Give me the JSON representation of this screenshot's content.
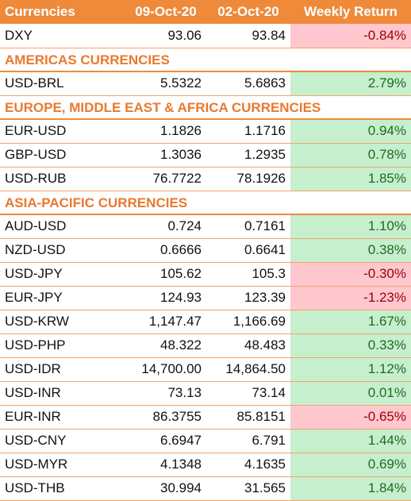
{
  "header": {
    "col_name": "Currencies",
    "col_current": "09-Oct-20",
    "col_previous": "02-Oct-20",
    "col_return": "Weekly Return"
  },
  "colors": {
    "header_bg": "#ef8a3a",
    "section_text": "#e8792f",
    "positive_bg": "#c6efce",
    "negative_bg": "#ffc7ce"
  },
  "rows": [
    {
      "type": "data",
      "name": "DXY",
      "current": "93.06",
      "previous": "93.84",
      "ret": "-0.84%",
      "sign": "neg"
    },
    {
      "type": "section",
      "title": "AMERICAS CURRENCIES"
    },
    {
      "type": "data",
      "name": "USD-BRL",
      "current": "5.5322",
      "previous": "5.6863",
      "ret": "2.79%",
      "sign": "pos"
    },
    {
      "type": "section",
      "title": "EUROPE, MIDDLE EAST & AFRICA CURRENCIES"
    },
    {
      "type": "data",
      "name": "EUR-USD",
      "current": "1.1826",
      "previous": "1.1716",
      "ret": "0.94%",
      "sign": "pos"
    },
    {
      "type": "data",
      "name": "GBP-USD",
      "current": "1.3036",
      "previous": "1.2935",
      "ret": "0.78%",
      "sign": "pos"
    },
    {
      "type": "data",
      "name": "USD-RUB",
      "current": "76.7722",
      "previous": "78.1926",
      "ret": "1.85%",
      "sign": "pos"
    },
    {
      "type": "section",
      "title": "ASIA-PACIFIC CURRENCIES"
    },
    {
      "type": "data",
      "name": "AUD-USD",
      "current": "0.724",
      "previous": "0.7161",
      "ret": "1.10%",
      "sign": "pos"
    },
    {
      "type": "data",
      "name": "NZD-USD",
      "current": "0.6666",
      "previous": "0.6641",
      "ret": "0.38%",
      "sign": "pos"
    },
    {
      "type": "data",
      "name": "USD-JPY",
      "current": "105.62",
      "previous": "105.3",
      "ret": "-0.30%",
      "sign": "neg"
    },
    {
      "type": "data",
      "name": "EUR-JPY",
      "current": "124.93",
      "previous": "123.39",
      "ret": "-1.23%",
      "sign": "neg"
    },
    {
      "type": "data",
      "name": "USD-KRW",
      "current": "1,147.47",
      "previous": "1,166.69",
      "ret": "1.67%",
      "sign": "pos"
    },
    {
      "type": "data",
      "name": "USD-PHP",
      "current": "48.322",
      "previous": "48.483",
      "ret": "0.33%",
      "sign": "pos"
    },
    {
      "type": "data",
      "name": "USD-IDR",
      "current": "14,700.00",
      "previous": "14,864.50",
      "ret": "1.12%",
      "sign": "pos"
    },
    {
      "type": "data",
      "name": "USD-INR",
      "current": "73.13",
      "previous": "73.14",
      "ret": "0.01%",
      "sign": "pos"
    },
    {
      "type": "data",
      "name": "EUR-INR",
      "current": "86.3755",
      "previous": "85.8151",
      "ret": "-0.65%",
      "sign": "neg"
    },
    {
      "type": "data",
      "name": "USD-CNY",
      "current": "6.6947",
      "previous": "6.791",
      "ret": "1.44%",
      "sign": "pos"
    },
    {
      "type": "data",
      "name": "USD-MYR",
      "current": "4.1348",
      "previous": "4.1635",
      "ret": "0.69%",
      "sign": "pos"
    },
    {
      "type": "data",
      "name": "USD-THB",
      "current": "30.994",
      "previous": "31.565",
      "ret": "1.84%",
      "sign": "pos"
    }
  ]
}
